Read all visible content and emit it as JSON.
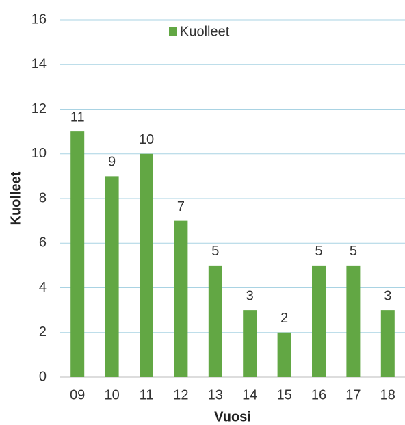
{
  "chart_data": {
    "type": "bar",
    "x_label": "Vuosi",
    "y_label": "Kuolleet",
    "categories": [
      "09",
      "10",
      "11",
      "12",
      "13",
      "14",
      "15",
      "16",
      "17",
      "18"
    ],
    "series": [
      {
        "name": "Kuolleet",
        "color": "#62a744",
        "values": [
          11,
          9,
          10,
          7,
          5,
          3,
          2,
          5,
          5,
          3
        ]
      }
    ],
    "ylim": [
      0,
      16
    ],
    "yticks": [
      0,
      2,
      4,
      6,
      8,
      10,
      12,
      14,
      16
    ],
    "grid": true,
    "legend": "top"
  }
}
